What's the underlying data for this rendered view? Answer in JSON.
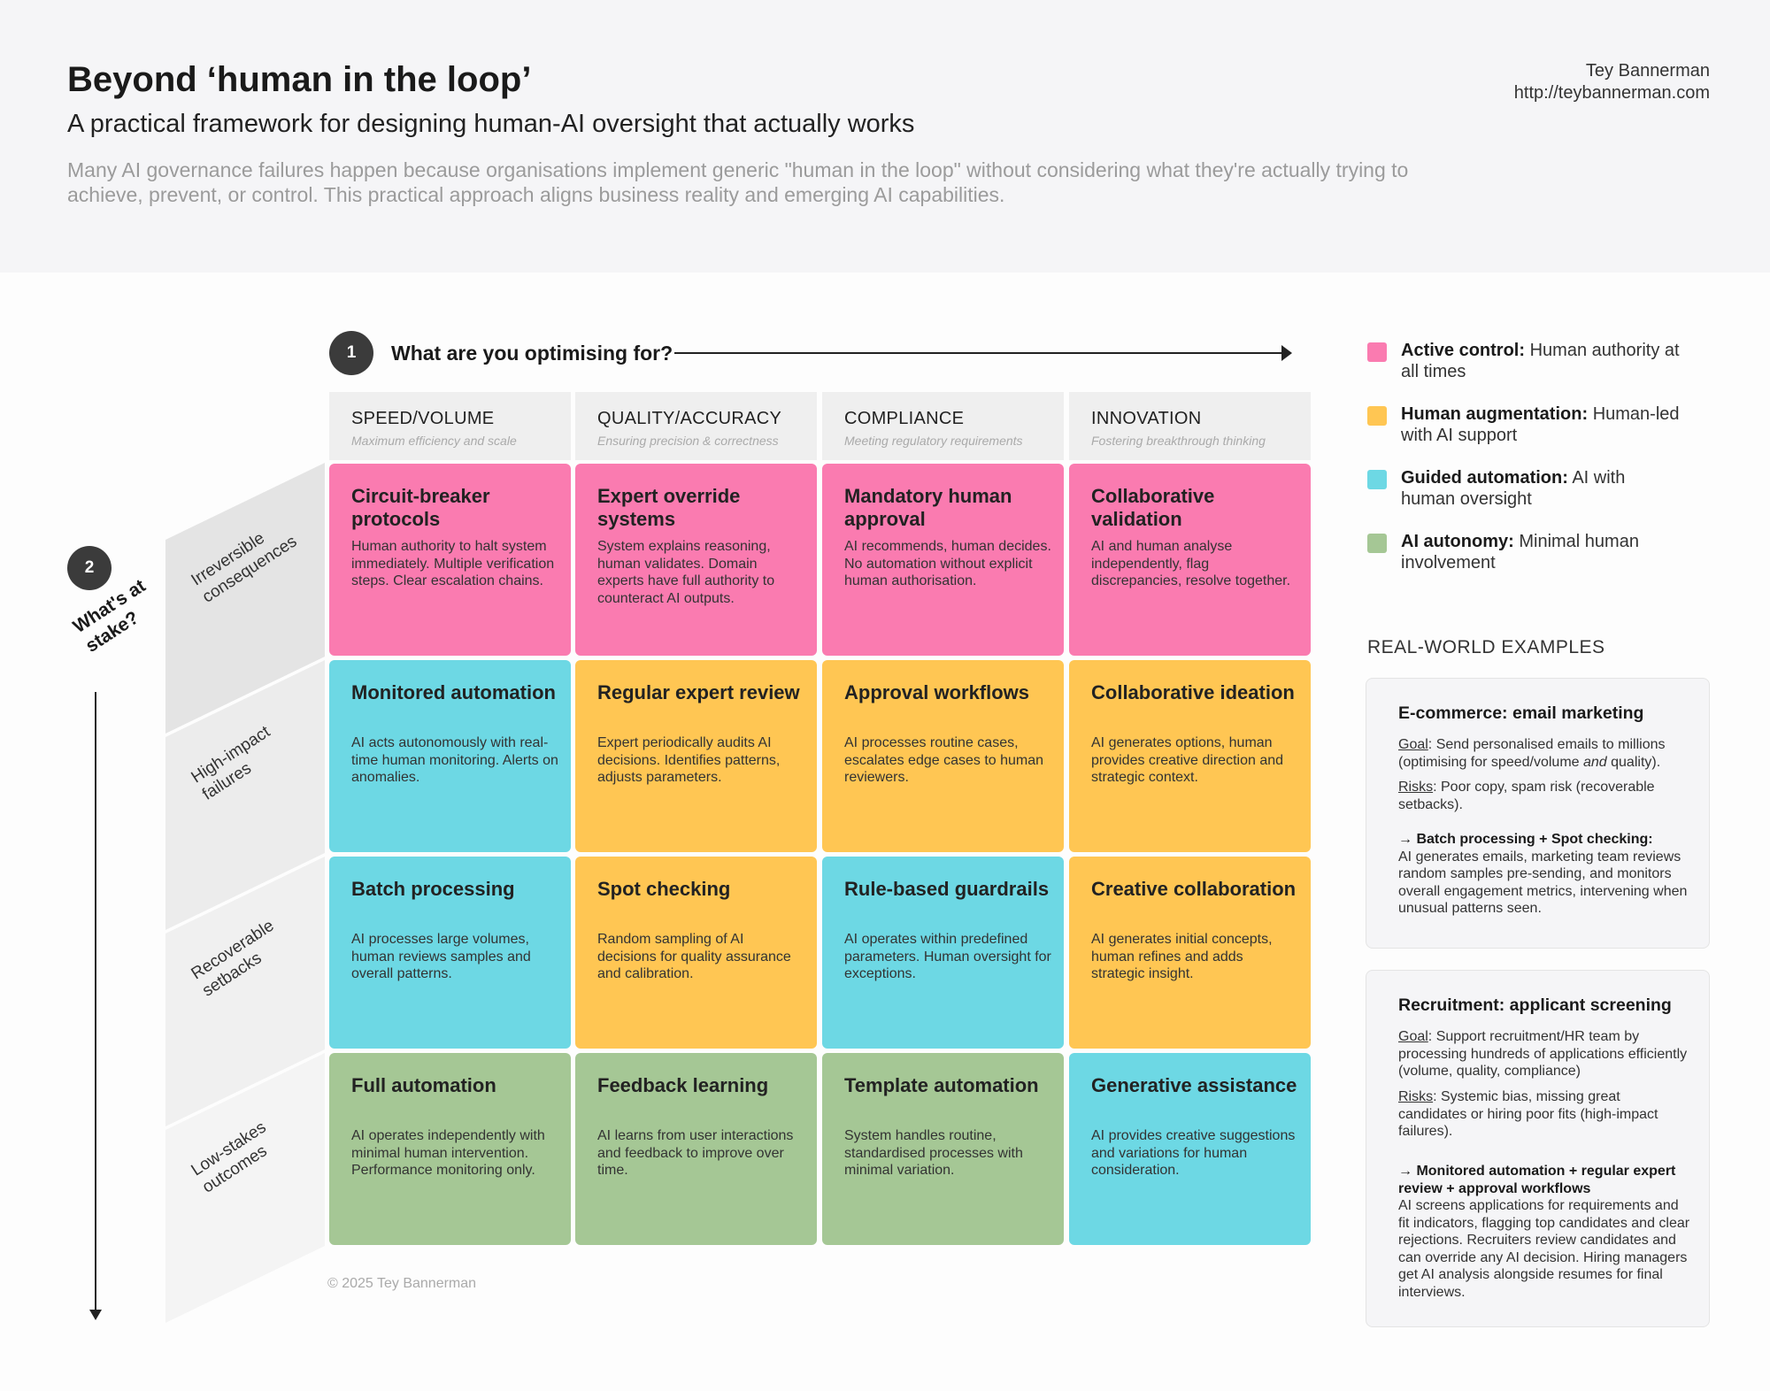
{
  "header": {
    "title": "Beyond ‘human in the loop’",
    "subtitle": "A practical framework for designing human-AI oversight that actually works",
    "intro": "Many AI governance failures happen because organisations implement generic \"human in the loop\" without considering what they're actually trying to achieve, prevent, or control. This practical approach aligns business reality and emerging AI capabilities.",
    "author_name": "Tey Bannerman",
    "author_url": "http://teybannerman.com"
  },
  "axis_x": {
    "number": "1",
    "label": "What are you optimising for?"
  },
  "axis_y": {
    "number": "2",
    "label_line1": "What's at",
    "label_line2": "stake?"
  },
  "columns": [
    {
      "title": "SPEED/VOLUME",
      "subtitle": "Maximum efficiency and scale"
    },
    {
      "title": "QUALITY/ACCURACY",
      "subtitle": "Ensuring precision & correctness"
    },
    {
      "title": "COMPLIANCE",
      "subtitle": "Meeting regulatory requirements"
    },
    {
      "title": "INNOVATION",
      "subtitle": "Fostering breakthrough thinking"
    }
  ],
  "rows": [
    {
      "line1": "Irreversible",
      "line2": "consequences"
    },
    {
      "line1": "High-impact",
      "line2": "failures"
    },
    {
      "line1": "Recoverable",
      "line2": "setbacks"
    },
    {
      "line1": "Low-stakes",
      "line2": "outcomes"
    }
  ],
  "cells": [
    {
      "title": "Circuit-breaker protocols",
      "desc": "Human authority to halt system immediately. Multiple verification steps. Clear escalation chains.",
      "color": "#fa7bb0"
    },
    {
      "title": "Expert override systems",
      "desc": "System explains reasoning, human validates. Domain experts have full authority to counteract AI outputs.",
      "color": "#fa7bb0"
    },
    {
      "title": "Mandatory human approval",
      "desc": "AI recommends, human decides. No automation without explicit human authorisation.",
      "color": "#fa7bb0"
    },
    {
      "title": "Collaborative validation",
      "desc": "AI and human analyse independently, flag discrepancies, resolve together.",
      "color": "#fa7bb0"
    },
    {
      "title": "Monitored automation",
      "desc": "AI acts autonomously with real-time human monitoring. Alerts on anomalies.",
      "color": "#6dd8e4"
    },
    {
      "title": "Regular expert review",
      "desc": "Expert periodically audits AI decisions. Identifies patterns, adjusts parameters.",
      "color": "#ffc653"
    },
    {
      "title": "Approval workflows",
      "desc": "AI processes routine cases, escalates edge cases to human reviewers.",
      "color": "#ffc653"
    },
    {
      "title": "Collaborative ideation",
      "desc": "AI generates options, human provides creative direction and strategic context.",
      "color": "#ffc653"
    },
    {
      "title": "Batch processing",
      "desc": "AI processes large volumes, human reviews samples and overall patterns.",
      "color": "#6dd8e4"
    },
    {
      "title": "Spot checking",
      "desc": "Random sampling of AI decisions for quality assurance and calibration.",
      "color": "#ffc653"
    },
    {
      "title": "Rule-based guardrails",
      "desc": "AI operates within predefined parameters. Human oversight for exceptions.",
      "color": "#6dd8e4"
    },
    {
      "title": "Creative collaboration",
      "desc": "AI generates initial concepts, human refines and adds strategic insight.",
      "color": "#ffc653"
    },
    {
      "title": "Full automation",
      "desc": "AI operates independently with minimal human intervention. Performance monitoring only.",
      "color": "#a5c795"
    },
    {
      "title": "Feedback learning",
      "desc": "AI learns from user interactions and feedback to improve over time.",
      "color": "#a5c795"
    },
    {
      "title": "Template automation",
      "desc": "System handles routine, standardised processes with minimal variation.",
      "color": "#a5c795"
    },
    {
      "title": "Generative assistance",
      "desc": "AI provides creative suggestions and variations for human consideration.",
      "color": "#6dd8e4"
    }
  ],
  "legend": [
    {
      "bold": "Active control:",
      "text": "Human authority at all times",
      "color": "#fa7bb0"
    },
    {
      "bold": "Human augmentation:",
      "text": "Human-led with AI support",
      "color": "#ffc653"
    },
    {
      "bold": "Guided automation:",
      "text": "AI with human oversight",
      "color": "#6dd8e4"
    },
    {
      "bold": "AI autonomy:",
      "text": "Minimal human involvement",
      "color": "#a5c795"
    }
  ],
  "examples": {
    "heading": "REAL-WORLD EXAMPLES",
    "ecommerce": {
      "title": "E-commerce: email marketing",
      "goal_label": "Goal",
      "goal_a": ": Send personalised emails to millions (optimising for speed/volume ",
      "goal_and": "and",
      "goal_b": " quality).",
      "risks_label": "Risks",
      "risks": ": Poor copy, spam risk (recoverable setbacks).",
      "rec_head": "→ Batch processing + Spot checking:",
      "rec_body": "AI generates emails, marketing team reviews random samples pre-sending, and monitors overall engagement metrics, intervening when unusual patterns seen."
    },
    "recruitment": {
      "title": "Recruitment: applicant screening",
      "goal_label": "Goal",
      "goal": ": Support recruitment/HR team by processing hundreds of applications efficiently (volume, quality, compliance)",
      "risks_label": "Risks",
      "risks": ": Systemic bias, missing great candidates or hiring poor fits (high-impact failures).",
      "rec_head": "→ Monitored automation + regular expert review + approval workflows",
      "rec_body": "AI screens applications for requirements and fit indicators, flagging top candidates and clear rejections. Recruiters review candidates and can override any AI decision. Hiring managers get AI analysis alongside resumes for final interviews."
    }
  },
  "footer": "© 2025 Tey Bannerman"
}
